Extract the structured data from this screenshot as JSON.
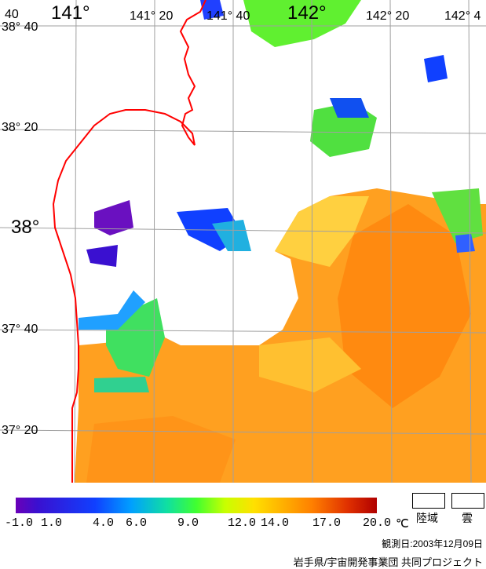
{
  "map": {
    "lon_labels": [
      "40",
      "141°",
      "141° 20",
      "141° 40",
      "142°",
      "142° 20",
      "142° 4"
    ],
    "lat_labels": [
      "38° 40",
      "38° 20",
      "38°",
      "37° 40",
      "37° 20"
    ],
    "coastline_color": "#ff0000",
    "grid_color": "#a0a0a0"
  },
  "colorbar": {
    "ticks": [
      "-1.0",
      "1.0",
      "4.0",
      "6.0",
      "9.0",
      "12.0",
      "14.0",
      "17.0",
      "20.0"
    ],
    "unit": "℃",
    "legend_land": "陸域",
    "legend_cloud": "雲"
  },
  "observation_date": "観測日:2003年12月09日",
  "credit": "岩手県/宇宙開発事業団 共同プロジェクト"
}
